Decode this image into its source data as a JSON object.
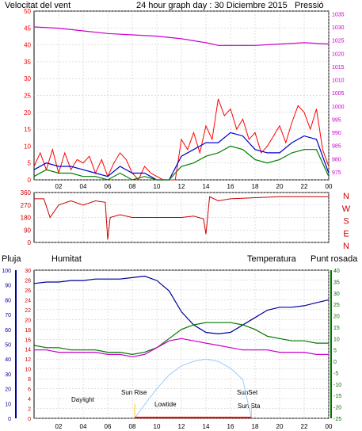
{
  "header": {
    "wind_label": "Velocitat del vent",
    "title": "24 hour graph day : 30 Diciembre 2015",
    "pressure_label": "Pressió"
  },
  "lower_header": {
    "rain_label": "Pluja",
    "humidity_label": "Humitat",
    "temp_label": "Temperatura",
    "dew_label": "Punt rosada"
  },
  "colors": {
    "wind_gust": "#ff0000",
    "wind_avg": "#0000cc",
    "wind_temp_like": "#008000",
    "pressure": "#cc00cc",
    "direction": "#cc0000",
    "humidity": "#000099",
    "temperature": "#007700",
    "dew": "#cc00cc",
    "sun_curve": "#99ccff",
    "annotation": "#ffcc00",
    "frame": "#000000",
    "grid": "#c0c0c0"
  },
  "annotations": {
    "daylight": "Daylight",
    "sunrise": "Sun Rise",
    "lowtide": "Lowtide",
    "sunset": "SunSet",
    "sunstart": "Sun Sta"
  },
  "chart_data": [
    {
      "type": "line",
      "x_tick_labels": [
        "02",
        "04",
        "06",
        "08",
        "10",
        "12",
        "14",
        "16",
        "18",
        "20",
        "22",
        "00"
      ],
      "left_axis_ticks": [
        0,
        5,
        10,
        15,
        20,
        25,
        30,
        35,
        40,
        45,
        50
      ],
      "right_axis_ticks": [
        975,
        980,
        985,
        990,
        995,
        1000,
        1005,
        1010,
        1015,
        1020,
        1025,
        1030,
        1035
      ],
      "ylim_left": [
        0,
        50
      ],
      "ylim_right": [
        972,
        1036
      ],
      "series": [
        {
          "name": "Velocitat del vent",
          "color": "#ff0000",
          "x": [
            0,
            0.5,
            1,
            1.5,
            2,
            2.5,
            3,
            3.5,
            4,
            4.5,
            5,
            5.5,
            6,
            6.5,
            7,
            7.5,
            8,
            8.5,
            9,
            9.5,
            10,
            10.5,
            11,
            11.5,
            12,
            12.5,
            13,
            13.5,
            14,
            14.5,
            15,
            15.5,
            16,
            16.5,
            17,
            17.5,
            18,
            18.5,
            19,
            19.5,
            20,
            20.5,
            21,
            21.5,
            22,
            22.5,
            23,
            23.5,
            24
          ],
          "values": [
            4,
            8,
            3,
            9,
            2,
            8,
            3,
            6,
            5,
            7,
            2,
            6,
            1,
            5,
            8,
            6,
            2,
            0,
            4,
            2,
            1,
            0,
            0,
            0,
            12,
            9,
            14,
            8,
            16,
            12,
            24,
            19,
            21,
            15,
            18,
            12,
            14,
            8,
            10,
            13,
            16,
            11,
            17,
            22,
            20,
            15,
            21,
            9,
            4
          ]
        },
        {
          "name": "",
          "color": "#0000cc",
          "x": [
            0,
            1,
            2,
            3,
            4,
            5,
            6,
            7,
            8,
            9,
            10,
            11,
            12,
            13,
            14,
            15,
            16,
            17,
            18,
            19,
            20,
            21,
            22,
            23,
            24
          ],
          "values": [
            3,
            5,
            4,
            4,
            3,
            2,
            1,
            4,
            2,
            2,
            0,
            0,
            7,
            9,
            11,
            11,
            14,
            13,
            9,
            8,
            8,
            11,
            13,
            12,
            2
          ]
        },
        {
          "name": "",
          "color": "#008000",
          "x": [
            0,
            1,
            2,
            3,
            4,
            5,
            6,
            7,
            8,
            9,
            10,
            11,
            12,
            13,
            14,
            15,
            16,
            17,
            18,
            19,
            20,
            21,
            22,
            23,
            24
          ],
          "values": [
            1,
            3,
            2,
            2,
            1,
            1,
            0,
            2,
            0,
            1,
            0,
            0,
            4,
            5,
            7,
            8,
            10,
            9,
            6,
            5,
            6,
            8,
            9,
            9,
            1
          ]
        },
        {
          "name": "Pressió",
          "color": "#cc00cc",
          "x": [
            0,
            2,
            4,
            6,
            8,
            10,
            12,
            14,
            15,
            16,
            18,
            20,
            22,
            24
          ],
          "values": [
            1030,
            1029.5,
            1028.5,
            1027.5,
            1027,
            1026.5,
            1025.5,
            1024,
            1023,
            1023,
            1023,
            1023.5,
            1024,
            1023.5
          ]
        }
      ]
    },
    {
      "type": "line",
      "y_tick_labels": [
        "360",
        "270",
        "180",
        "90",
        "0"
      ],
      "ylim": [
        0,
        360
      ],
      "direction_labels": [
        "N",
        "W",
        "S",
        "E",
        "N"
      ],
      "series": [
        {
          "name": "",
          "color": "#cc0000",
          "x": [
            0,
            0.8,
            1.3,
            2,
            3,
            4,
            5,
            5.8,
            6,
            6.2,
            7,
            8,
            10,
            12,
            13,
            13.8,
            14,
            14.3,
            15,
            16,
            20,
            24
          ],
          "values": [
            315,
            315,
            180,
            270,
            300,
            270,
            300,
            290,
            20,
            180,
            200,
            180,
            180,
            180,
            190,
            170,
            60,
            330,
            300,
            315,
            330,
            330
          ]
        }
      ]
    },
    {
      "type": "line",
      "humidity_ticks": [
        0,
        10,
        20,
        30,
        40,
        50,
        60,
        70,
        80,
        90,
        100
      ],
      "temp_left_ticks": [
        0,
        2,
        4,
        6,
        8,
        10,
        12,
        14,
        16,
        18,
        20,
        22,
        24,
        26,
        28,
        30
      ],
      "temp_right_ticks": [
        -25,
        -20,
        -15,
        -10,
        -5,
        0,
        5,
        10,
        15,
        20,
        25,
        30,
        35,
        40
      ],
      "ylim_humidity": [
        0,
        100
      ],
      "ylim_temp": [
        -25,
        40
      ],
      "series": [
        {
          "name": "Humitat",
          "color": "#000099",
          "x": [
            0,
            1,
            2,
            3,
            4,
            5,
            6,
            7,
            8,
            9,
            10,
            11,
            12,
            13,
            14,
            15,
            16,
            17,
            18,
            19,
            20,
            21,
            22,
            23,
            24
          ],
          "values": [
            91,
            92,
            92,
            93,
            93,
            94,
            94,
            94,
            95,
            96,
            93,
            86,
            72,
            63,
            58,
            57,
            58,
            63,
            68,
            73,
            75,
            75,
            76,
            78,
            80
          ]
        },
        {
          "name": "Temperatura",
          "color": "#007700",
          "x": [
            0,
            1,
            2,
            3,
            4,
            5,
            6,
            7,
            8,
            9,
            10,
            11,
            12,
            13,
            14,
            15,
            16,
            17,
            18,
            19,
            20,
            21,
            22,
            23,
            24
          ],
          "values": [
            7,
            6,
            6,
            5,
            5,
            5,
            4,
            4,
            3,
            4,
            6,
            10,
            14,
            16,
            17,
            17,
            17,
            16,
            14,
            11,
            10,
            9,
            9,
            8,
            8
          ]
        },
        {
          "name": "Punt rosada",
          "color": "#cc00cc",
          "x": [
            0,
            1,
            2,
            3,
            4,
            5,
            6,
            7,
            8,
            9,
            10,
            11,
            12,
            13,
            14,
            15,
            16,
            17,
            18,
            19,
            20,
            21,
            22,
            23,
            24
          ],
          "values": [
            5,
            5,
            4,
            4,
            4,
            4,
            3,
            3,
            2,
            3,
            6,
            9,
            10,
            9,
            8,
            7,
            6,
            5,
            5,
            5,
            4,
            4,
            4,
            3,
            3
          ]
        }
      ],
      "sun_elevation": {
        "x": [
          8.2,
          9,
          10,
          11,
          12,
          13,
          14,
          15,
          16,
          17,
          17.7
        ],
        "values": [
          -25,
          -19,
          -12,
          -6,
          -2,
          0,
          1,
          0,
          -3,
          -8,
          -25
        ]
      }
    }
  ]
}
